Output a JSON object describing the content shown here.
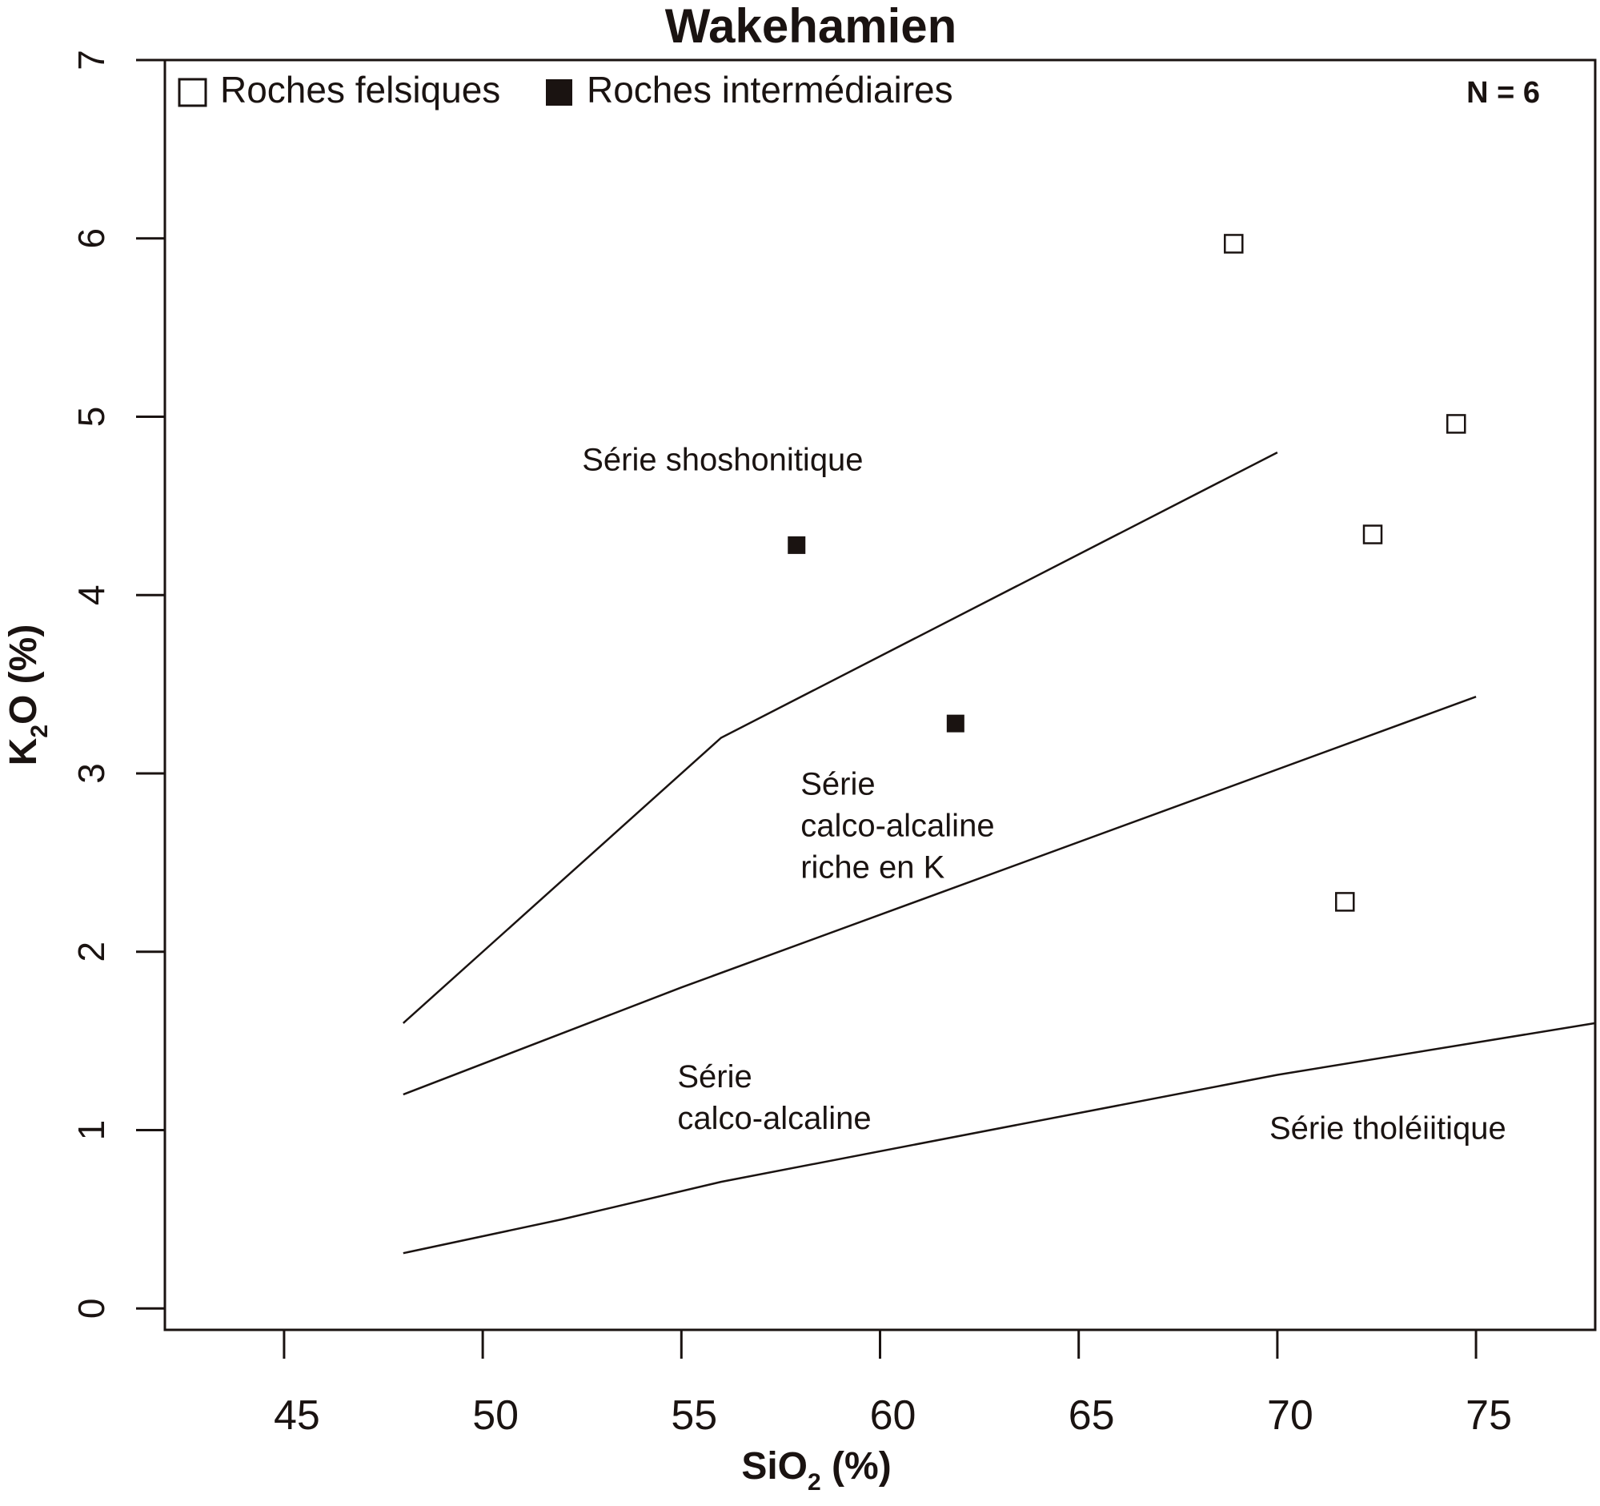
{
  "chart_data": {
    "type": "scatter",
    "title": "Wakehamien",
    "xlabel": {
      "main": "SiO",
      "sub": "2",
      "unit": " (%)"
    },
    "ylabel": {
      "main": "K",
      "sub": "2",
      "unit": "O (%)"
    },
    "xlim": [
      42,
      78
    ],
    "ylim": [
      -0.12,
      7
    ],
    "x_ticks": [
      45,
      50,
      55,
      60,
      65,
      70,
      75
    ],
    "y_ticks": [
      0,
      1,
      2,
      3,
      4,
      5,
      6,
      7
    ],
    "grid": false,
    "legend_position": "top-left",
    "count_label": "N = 6",
    "series": [
      {
        "name": "Roches felsiques",
        "marker": "open-square",
        "points": [
          [
            68.9,
            5.97
          ],
          [
            74.5,
            4.96
          ],
          [
            72.4,
            4.34
          ],
          [
            71.7,
            2.28
          ]
        ]
      },
      {
        "name": "Roches intermédiaires",
        "marker": "filled-square",
        "points": [
          [
            57.9,
            4.28
          ],
          [
            61.9,
            3.28
          ]
        ]
      }
    ],
    "boundaries": [
      {
        "points": [
          [
            48,
            1.6
          ],
          [
            56,
            3.2
          ],
          [
            70,
            4.8
          ]
        ]
      },
      {
        "points": [
          [
            48,
            1.2
          ],
          [
            55,
            1.8
          ],
          [
            75,
            3.43
          ]
        ]
      },
      {
        "points": [
          [
            48,
            0.31
          ],
          [
            52,
            0.5
          ],
          [
            56,
            0.71
          ],
          [
            70,
            1.31
          ],
          [
            78,
            1.6
          ]
        ]
      }
    ],
    "regions": [
      {
        "lines": [
          "Série shoshonitique"
        ],
        "x": 52.5,
        "y": 4.7
      },
      {
        "lines": [
          "Série",
          "calco-alcaline",
          "riche en K"
        ],
        "x": 58,
        "y": 2.88
      },
      {
        "lines": [
          "Série",
          "calco-alcaline"
        ],
        "x": 54.9,
        "y": 1.24
      },
      {
        "lines": [
          "Série tholéiitique"
        ],
        "x": 69.8,
        "y": 0.95
      }
    ]
  }
}
